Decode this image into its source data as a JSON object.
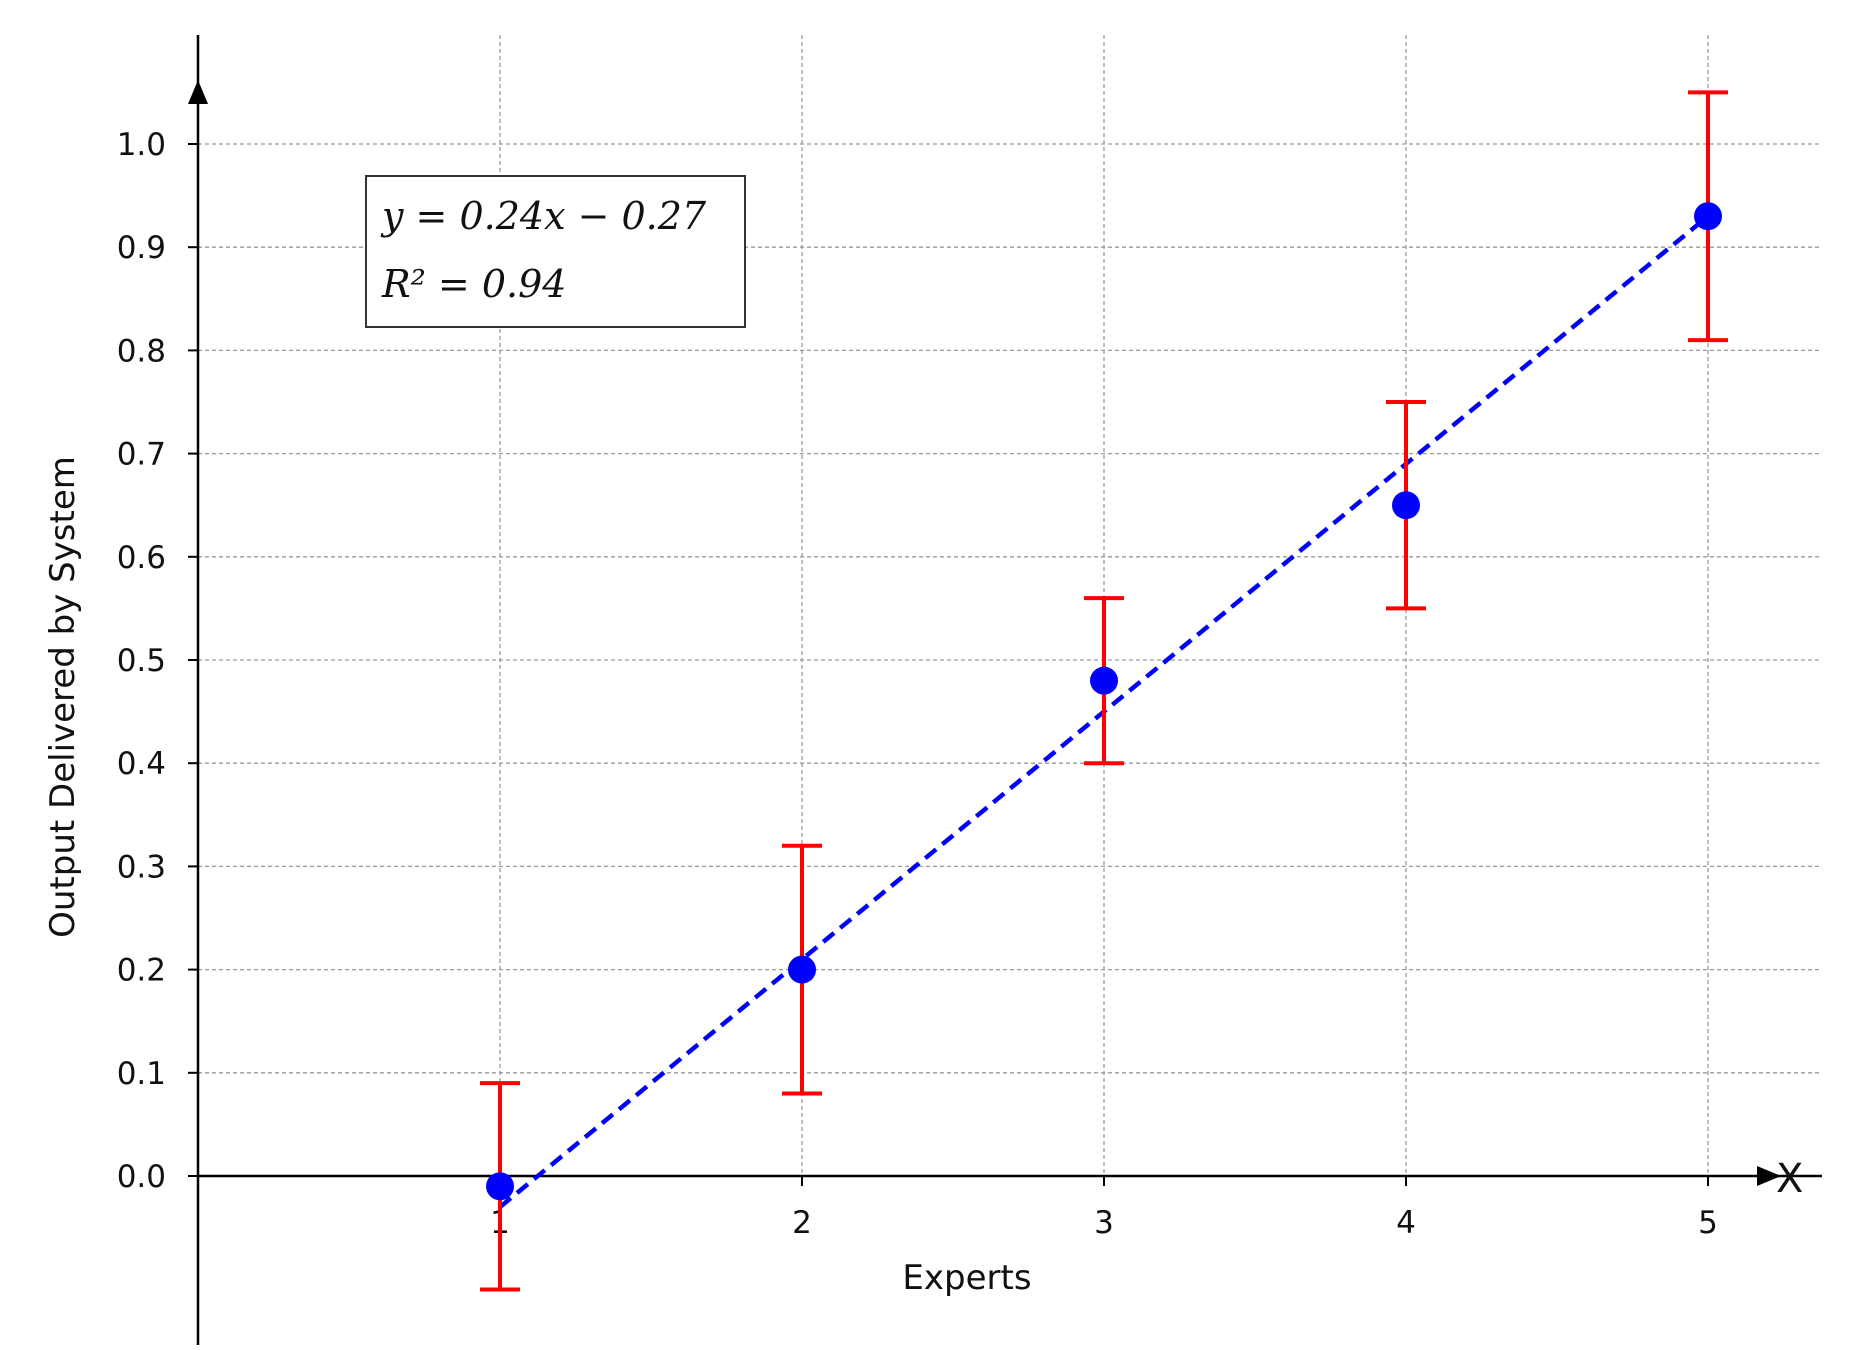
{
  "chart_data": {
    "type": "scatter",
    "xlabel": "Experts",
    "ylabel": "Output Delivered by System",
    "x_axis_end_label": "X",
    "xlim": [
      0,
      5.35
    ],
    "ylim": [
      -0.17,
      1.1
    ],
    "x_ticks": [
      "1",
      "2",
      "3",
      "4",
      "5"
    ],
    "y_ticks": [
      "0.0",
      "0.1",
      "0.2",
      "0.3",
      "0.4",
      "0.5",
      "0.6",
      "0.7",
      "0.8",
      "0.9",
      "1.0"
    ],
    "grid": true,
    "series": [
      {
        "x": [
          1,
          2,
          3,
          4,
          5
        ],
        "y": [
          -0.01,
          0.2,
          0.48,
          0.65,
          0.93
        ],
        "error_lower": [
          -0.11,
          0.08,
          0.4,
          0.55,
          0.81
        ],
        "error_upper": [
          0.09,
          0.32,
          0.56,
          0.75,
          1.05
        ],
        "marker_color": "#0000ff",
        "error_color": "#ff0000"
      }
    ],
    "fit_line": {
      "slope": 0.24,
      "intercept": -0.27,
      "x_range": [
        1,
        5
      ],
      "color": "#0000ff",
      "style": "dashed"
    },
    "annotation": {
      "equation": "y = 0.24x − 0.27",
      "r_squared": "R² = 0.94"
    }
  }
}
